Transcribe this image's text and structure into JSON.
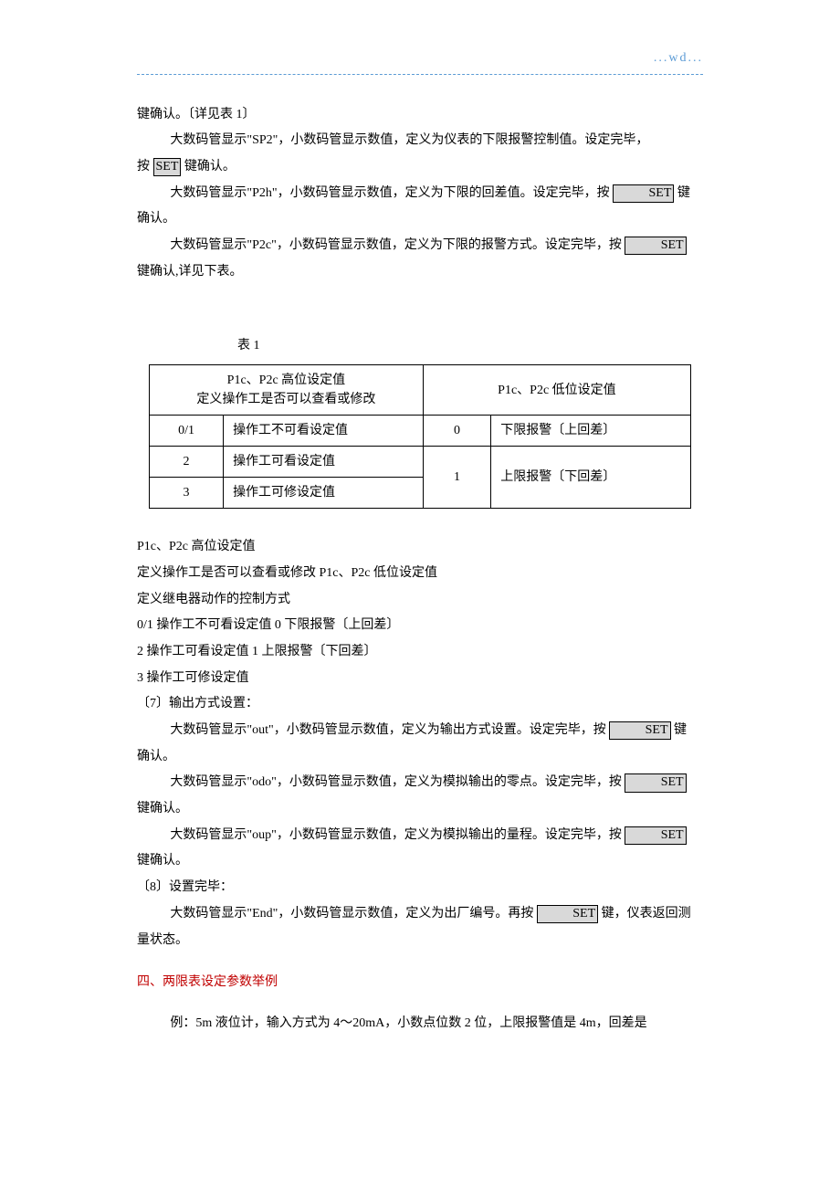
{
  "header": {
    "wd": "...wd..."
  },
  "intro": {
    "l1": "键确认。〔详见表 1〕",
    "l2a": "大数码管显示\"SP2\"，小数码管显示数值，定义为仪表的下限报警控制值。设定完毕，",
    "l2b_pre": "按 ",
    "l2b_post": " 键确认。",
    "l3a_pre": "大数码管显示\"P2h\"，小数码管显示数值，定义为下限的回差值。设定完毕，按 ",
    "l3a_post": " 键",
    "l3b": "确认。",
    "l4a_pre": "大数码管显示\"P2c\"，小数码管显示数值，定义为下限的报警方式。设定完毕，按 ",
    "l4b": "键确认,详见下表。"
  },
  "set_key": "SET",
  "table": {
    "caption": "表 1",
    "head_left_l1": "P1c、P2c 高位设定值",
    "head_left_l2": "定义操作工是否可以查看或修改",
    "head_right": "P1c、P2c 低位设定值",
    "rows_left": [
      {
        "code": "0/1",
        "desc": "操作工不可看设定值"
      },
      {
        "code": "2",
        "desc": "操作工可看设定值"
      },
      {
        "code": "3",
        "desc": "操作工可修设定值"
      }
    ],
    "rows_right": [
      {
        "code": "0",
        "desc": "下限报警〔上回差〕"
      },
      {
        "code": "1",
        "desc": "上限报警〔下回差〕"
      }
    ]
  },
  "aftertable": {
    "l1": "P1c、P2c 高位设定值",
    "l2": "定义操作工是否可以查看或修改   P1c、P2c 低位设定值",
    "l3": "定义继电器动作的控制方式",
    "l4": "0/1   操作工不可看设定值   0   下限报警〔上回差〕",
    "l5": "2   操作工可看设定值   1   上限报警〔下回差〕",
    "l6": "3   操作工可修设定值"
  },
  "sec7": {
    "title": "〔7〕输出方式设置：",
    "p1_pre": "大数码管显示\"out\"，小数码管显示数值，定义为输出方式设置。设定完毕，按 ",
    "p1_post": " 键",
    "p1b": "确认。",
    "p2_pre": "大数码管显示\"odo\"，小数码管显示数值，定义为模拟输出的零点。设定完毕，按 ",
    "p2b": "键确认。",
    "p3_pre": "大数码管显示\"oup\"，小数码管显示数值，定义为模拟输出的量程。设定完毕，按 ",
    "p3b": "键确认。"
  },
  "sec8": {
    "title": "〔8〕设置完毕：",
    "p1_pre": "大数码管显示\"End\"，小数码管显示数值，定义为出厂编号。再按 ",
    "p1_post": " 键，仪表返回测",
    "p1b": "量状态。"
  },
  "section4": {
    "title": "四、两限表设定参数举例",
    "example": "例：5m 液位计，输入方式为 4～20mA，小数点位数 2 位，上限报警值是 4m，回差是"
  }
}
